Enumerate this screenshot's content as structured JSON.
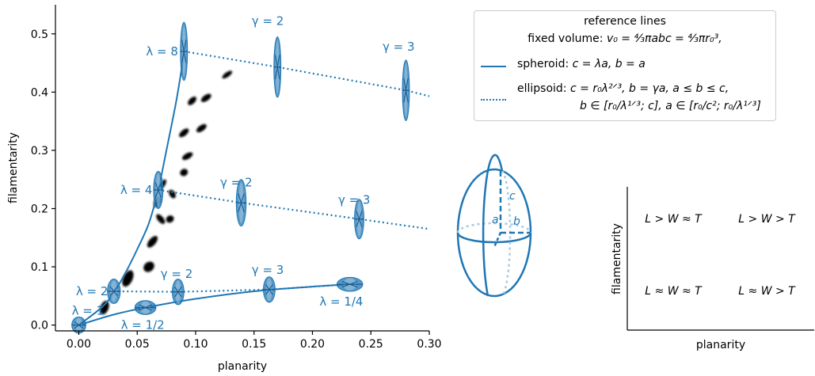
{
  "colors": {
    "primary": "#1f77b4",
    "light": "#aac9e2",
    "axis": "#000000"
  },
  "chart_data": [
    {
      "type": "scatter",
      "xlabel": "planarity",
      "ylabel": "filamentarity",
      "xlim": [
        -0.02,
        0.3
      ],
      "ylim": [
        -0.01,
        0.55
      ],
      "xticks": [
        "0.00",
        "0.05",
        "0.10",
        "0.15",
        "0.20",
        "0.25",
        "0.30"
      ],
      "yticks": [
        "0.0",
        "0.1",
        "0.2",
        "0.3",
        "0.4",
        "0.5"
      ],
      "spheroid_curve": [
        [
          0.0,
          0.0
        ],
        [
          0.02,
          0.031
        ],
        [
          0.03,
          0.056
        ],
        [
          0.04,
          0.09
        ],
        [
          0.05,
          0.13
        ],
        [
          0.06,
          0.175
        ],
        [
          0.068,
          0.232
        ],
        [
          0.075,
          0.3
        ],
        [
          0.083,
          0.38
        ],
        [
          0.088,
          0.44
        ],
        [
          0.09,
          0.47
        ]
      ],
      "oblate_curve": [
        [
          0.0,
          0.0
        ],
        [
          0.03,
          0.018
        ],
        [
          0.057,
          0.03
        ],
        [
          0.1,
          0.045
        ],
        [
          0.15,
          0.058
        ],
        [
          0.2,
          0.066
        ],
        [
          0.232,
          0.07
        ]
      ],
      "dotted_lines": [
        [
          [
            0.09,
            0.47
          ],
          [
            0.17,
            0.443
          ],
          [
            0.28,
            0.403
          ],
          [
            0.3,
            0.393
          ]
        ],
        [
          [
            0.068,
            0.232
          ],
          [
            0.139,
            0.21
          ],
          [
            0.24,
            0.182
          ],
          [
            0.3,
            0.165
          ]
        ],
        [
          [
            0.03,
            0.058
          ],
          [
            0.085,
            0.057
          ],
          [
            0.163,
            0.061
          ],
          [
            0.232,
            0.07
          ]
        ]
      ],
      "ellipses": [
        {
          "x": 0.0,
          "y": 0.0,
          "rx": 0.006,
          "ry": 0.014
        },
        {
          "x": 0.03,
          "y": 0.058,
          "rx": 0.0055,
          "ry": 0.021
        },
        {
          "x": 0.057,
          "y": 0.03,
          "rx": 0.009,
          "ry": 0.012
        },
        {
          "x": 0.068,
          "y": 0.232,
          "rx": 0.004,
          "ry": 0.032
        },
        {
          "x": 0.09,
          "y": 0.47,
          "rx": 0.003,
          "ry": 0.05
        },
        {
          "x": 0.085,
          "y": 0.057,
          "rx": 0.005,
          "ry": 0.022
        },
        {
          "x": 0.139,
          "y": 0.21,
          "rx": 0.0042,
          "ry": 0.04
        },
        {
          "x": 0.17,
          "y": 0.443,
          "rx": 0.003,
          "ry": 0.052
        },
        {
          "x": 0.163,
          "y": 0.061,
          "rx": 0.005,
          "ry": 0.022
        },
        {
          "x": 0.24,
          "y": 0.182,
          "rx": 0.004,
          "ry": 0.034
        },
        {
          "x": 0.28,
          "y": 0.403,
          "rx": 0.003,
          "ry": 0.052
        },
        {
          "x": 0.232,
          "y": 0.07,
          "rx": 0.011,
          "ry": 0.012
        }
      ],
      "black_blobs": [
        {
          "x": 0.022,
          "y": 0.03,
          "rx": 0.0035,
          "ry": 0.012,
          "rot": 20
        },
        {
          "x": 0.042,
          "y": 0.08,
          "rx": 0.004,
          "ry": 0.015,
          "rot": 25
        },
        {
          "x": 0.06,
          "y": 0.1,
          "rx": 0.004,
          "ry": 0.01,
          "rot": 50
        },
        {
          "x": 0.063,
          "y": 0.143,
          "rx": 0.003,
          "ry": 0.012,
          "rot": 40
        },
        {
          "x": 0.07,
          "y": 0.182,
          "rx": 0.0025,
          "ry": 0.01,
          "rot": -40
        },
        {
          "x": 0.078,
          "y": 0.182,
          "rx": 0.003,
          "ry": 0.007,
          "rot": 60
        },
        {
          "x": 0.067,
          "y": 0.212,
          "rx": 0.0025,
          "ry": 0.01,
          "rot": 20
        },
        {
          "x": 0.08,
          "y": 0.225,
          "rx": 0.004,
          "ry": 0.005,
          "rot": 60
        },
        {
          "x": 0.072,
          "y": 0.242,
          "rx": 0.002,
          "ry": 0.009,
          "rot": 30
        },
        {
          "x": 0.09,
          "y": 0.262,
          "rx": 0.003,
          "ry": 0.007,
          "rot": 60
        },
        {
          "x": 0.093,
          "y": 0.29,
          "rx": 0.0025,
          "ry": 0.01,
          "rot": 60
        },
        {
          "x": 0.09,
          "y": 0.33,
          "rx": 0.0025,
          "ry": 0.01,
          "rot": 50
        },
        {
          "x": 0.105,
          "y": 0.338,
          "rx": 0.0025,
          "ry": 0.01,
          "rot": 55
        },
        {
          "x": 0.097,
          "y": 0.385,
          "rx": 0.0025,
          "ry": 0.009,
          "rot": 45
        },
        {
          "x": 0.109,
          "y": 0.39,
          "rx": 0.0025,
          "ry": 0.01,
          "rot": 55
        },
        {
          "x": 0.127,
          "y": 0.43,
          "rx": 0.002,
          "ry": 0.01,
          "rot": 55
        }
      ],
      "annotations": [
        {
          "text": "λ = 8",
          "x": 0.085,
          "y": 0.47
        },
        {
          "text": "λ = 4",
          "x": 0.063,
          "y": 0.232
        },
        {
          "text": "λ = 2",
          "x": 0.025,
          "y": 0.058
        },
        {
          "text": "λ = 1",
          "x": -0.006,
          "y": 0.025
        },
        {
          "text": "λ = 1/2",
          "x": 0.036,
          "y": 0.0
        },
        {
          "text": "λ = 1/4",
          "x": 0.206,
          "y": 0.04
        },
        {
          "text": "γ = 2",
          "x": 0.148,
          "y": 0.522
        },
        {
          "text": "γ = 3",
          "x": 0.26,
          "y": 0.478
        },
        {
          "text": "γ = 2",
          "x": 0.121,
          "y": 0.245
        },
        {
          "text": "γ = 3",
          "x": 0.222,
          "y": 0.215
        },
        {
          "text": "γ = 2",
          "x": 0.07,
          "y": 0.088
        },
        {
          "text": "γ = 3",
          "x": 0.148,
          "y": 0.095
        }
      ]
    },
    {
      "type": "table",
      "xlabel": "planarity",
      "ylabel": "filamentarity",
      "cells": [
        "L > W ≈ T",
        "L > W > T",
        "L ≈ W ≈ T",
        "L ≈ W > T"
      ]
    }
  ],
  "legend": {
    "title": "reference lines",
    "volume_prefix": "fixed volume: ",
    "volume_formula": "v₀ = ⁴⁄₃πabc = ⁴⁄₃πr₀³,",
    "spheroid_label": "spheroid: ",
    "spheroid_formula": "c = λa, b = a",
    "ellipsoid_label": "ellipsoid: ",
    "ellipsoid_formula": "c = r₀λ²ᐟ³, b = γa, a ≤ b ≤ c,",
    "ellipsoid_formula2": "b ∈ [r₀/λ¹ᐟ³; c], a ∈ [r₀/c²; r₀/λ¹ᐟ³]"
  },
  "ellipsoid_axes": {
    "a": "a",
    "b": "b",
    "c": "c"
  }
}
